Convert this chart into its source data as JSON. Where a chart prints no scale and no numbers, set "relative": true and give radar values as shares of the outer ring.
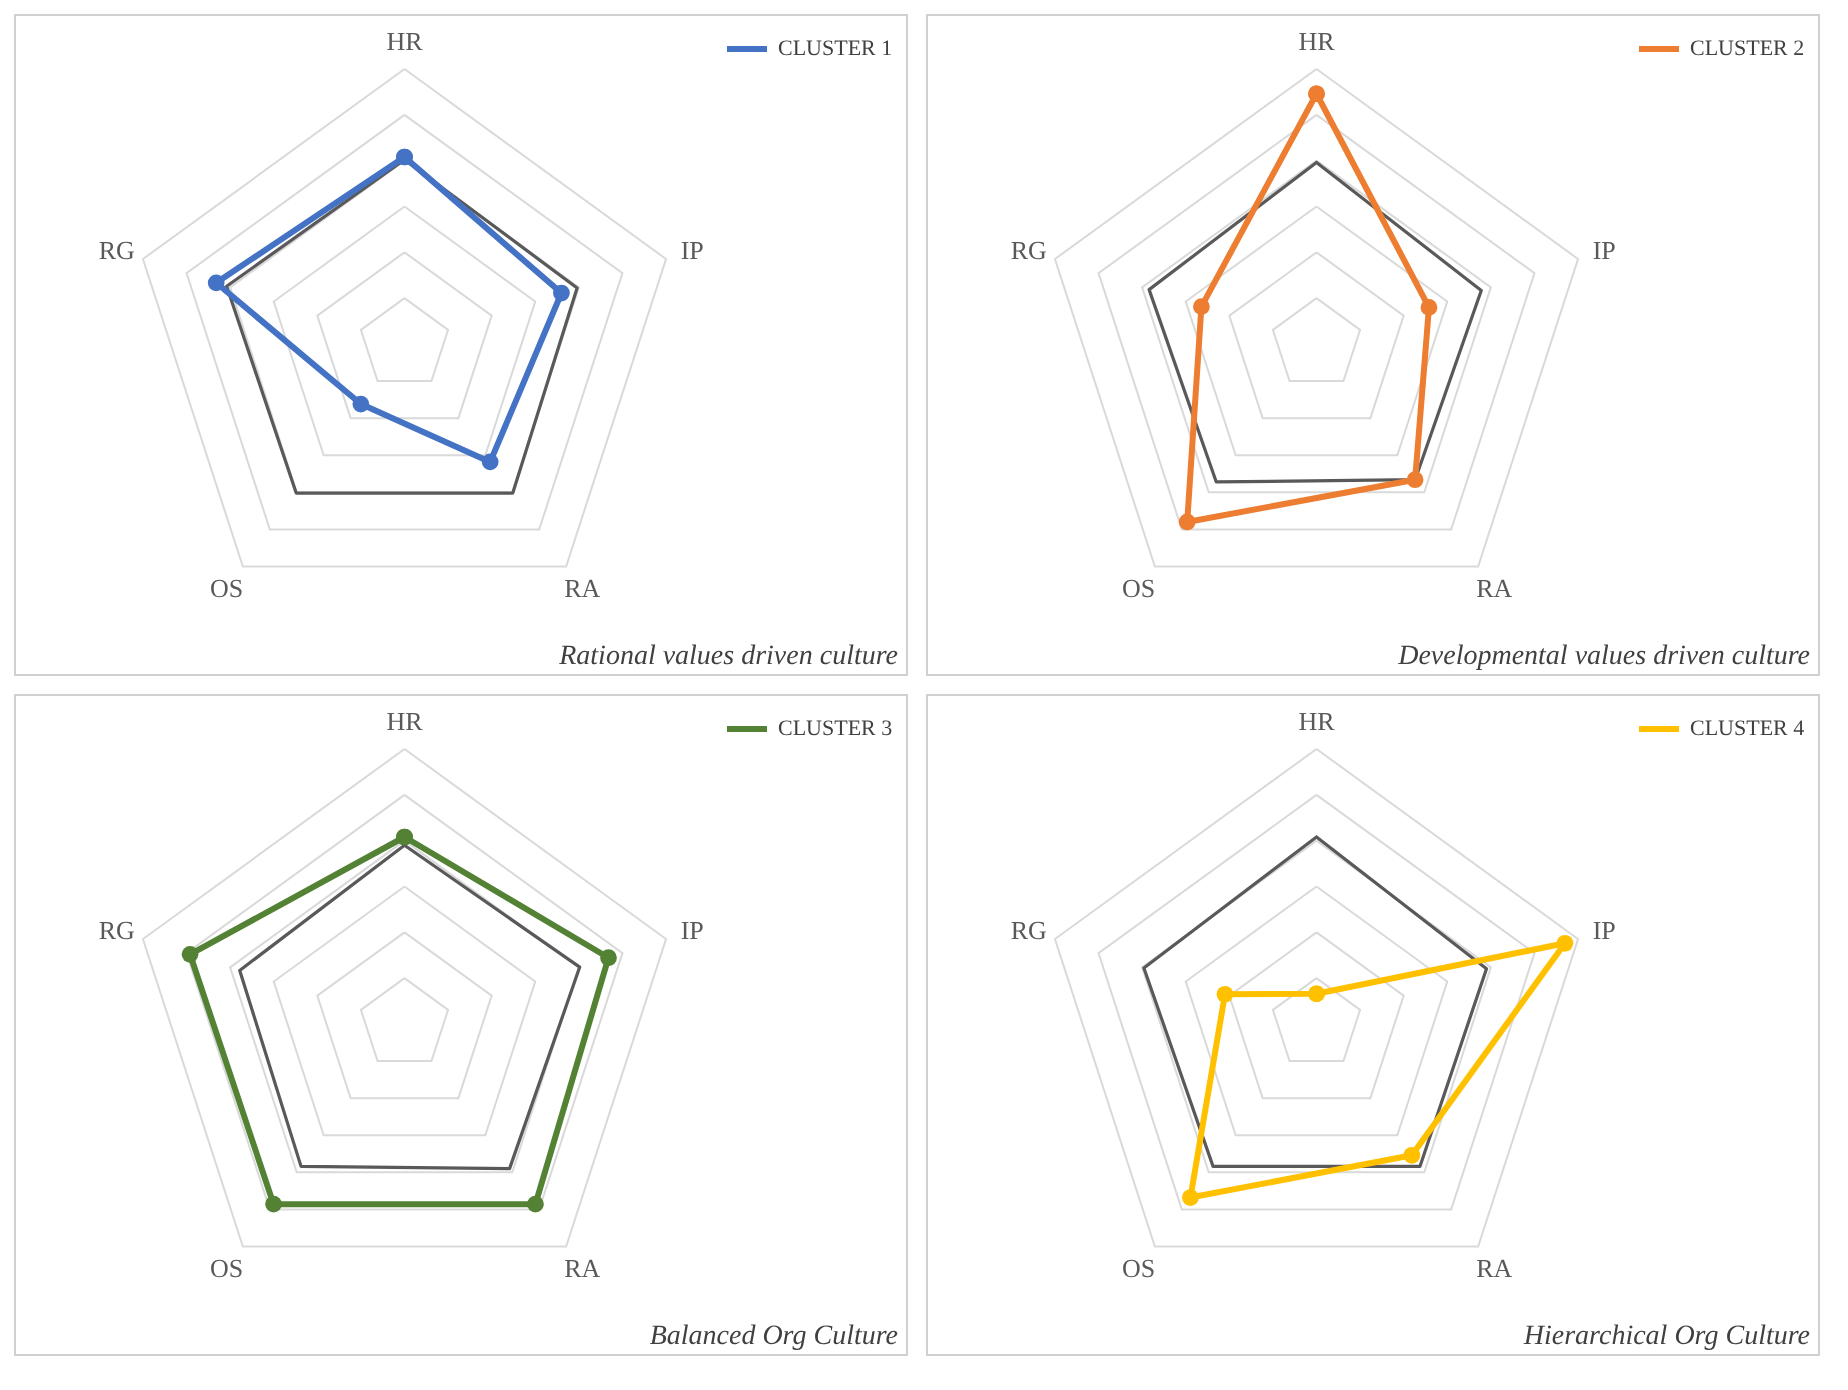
{
  "chart_data": [
    {
      "type": "radar",
      "relative": true,
      "grid": true,
      "marker": "circle",
      "legend": "top right",
      "categories": [
        "HR",
        "IP",
        "RA",
        "OS",
        "RG"
      ],
      "annotations": [
        "Rational values driven culture"
      ],
      "series": [
        {
          "color": "#595959",
          "marker": "none",
          "values": [
            0.67,
            0.66,
            0.67,
            0.67,
            0.68
          ]
        },
        {
          "name": "CLUSTER 1",
          "color": "#4472c4",
          "values": [
            0.68,
            0.6,
            0.53,
            0.27,
            0.72
          ]
        }
      ]
    },
    {
      "type": "radar",
      "relative": true,
      "grid": true,
      "marker": "circle",
      "legend": "top right",
      "categories": [
        "HR",
        "IP",
        "RA",
        "OS",
        "RG"
      ],
      "annotations": [
        "Developmental values driven culture"
      ],
      "series": [
        {
          "color": "#595959",
          "marker": "none",
          "values": [
            0.66,
            0.63,
            0.61,
            0.62,
            0.64
          ]
        },
        {
          "name": "CLUSTER 2",
          "color": "#ed7d31",
          "values": [
            0.91,
            0.43,
            0.61,
            0.8,
            0.44
          ]
        }
      ]
    },
    {
      "type": "radar",
      "relative": true,
      "grid": true,
      "marker": "circle",
      "legend": "top right",
      "categories": [
        "HR",
        "IP",
        "RA",
        "OS",
        "RG"
      ],
      "annotations": [
        "Balanced Org Culture"
      ],
      "series": [
        {
          "color": "#595959",
          "marker": "none",
          "values": [
            0.65,
            0.67,
            0.65,
            0.64,
            0.63
          ]
        },
        {
          "name": "CLUSTER 3",
          "color": "#548235",
          "values": [
            0.68,
            0.78,
            0.81,
            0.81,
            0.82
          ]
        }
      ]
    },
    {
      "type": "radar",
      "relative": true,
      "grid": true,
      "marker": "circle",
      "legend": "top right",
      "categories": [
        "HR",
        "IP",
        "RA",
        "OS",
        "RG"
      ],
      "annotations": [
        "Hierarchical Org Culture"
      ],
      "series": [
        {
          "color": "#595959",
          "marker": "none",
          "values": [
            0.68,
            0.65,
            0.64,
            0.64,
            0.66
          ]
        },
        {
          "name": "CLUSTER 4",
          "color": "#ffc000",
          "values": [
            0.11,
            0.95,
            0.59,
            0.78,
            0.35
          ]
        }
      ]
    }
  ]
}
